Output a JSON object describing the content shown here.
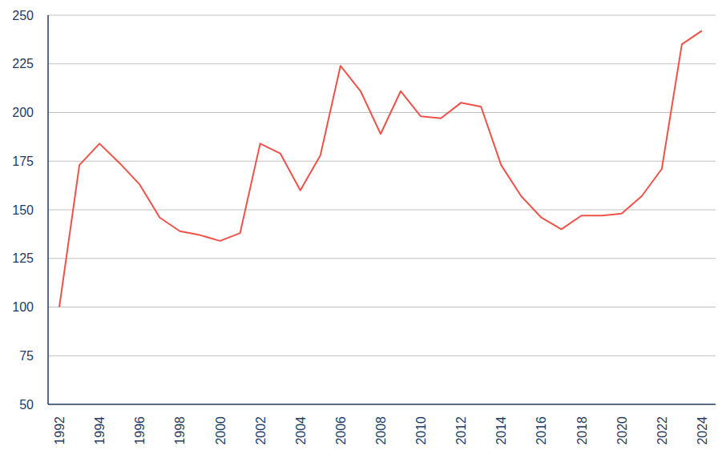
{
  "chart_data": {
    "type": "line",
    "x": [
      1992,
      1993,
      1994,
      1995,
      1996,
      1997,
      1998,
      1999,
      2000,
      2001,
      2002,
      2003,
      2004,
      2005,
      2006,
      2007,
      2008,
      2009,
      2010,
      2011,
      2012,
      2013,
      2014,
      2015,
      2016,
      2017,
      2018,
      2019,
      2020,
      2021,
      2022,
      2023,
      2024
    ],
    "values": [
      100,
      173,
      184,
      174,
      163,
      146,
      139,
      137,
      134,
      138,
      184,
      179,
      160,
      178,
      224,
      211,
      189,
      211,
      198,
      197,
      205,
      203,
      173,
      157,
      146,
      140,
      147,
      147,
      148,
      157,
      171,
      235,
      242
    ],
    "color": "#f0524a",
    "xlim": [
      1991.44,
      2024.68
    ],
    "xticks": [
      1992,
      1994,
      1996,
      1998,
      2000,
      2002,
      2004,
      2006,
      2008,
      2010,
      2012,
      2014,
      2016,
      2018,
      2020,
      2022,
      2024
    ],
    "ylim": [
      50,
      250
    ],
    "yticks": [
      50,
      75,
      100,
      125,
      150,
      175,
      200,
      225,
      250
    ],
    "grid": true
  }
}
